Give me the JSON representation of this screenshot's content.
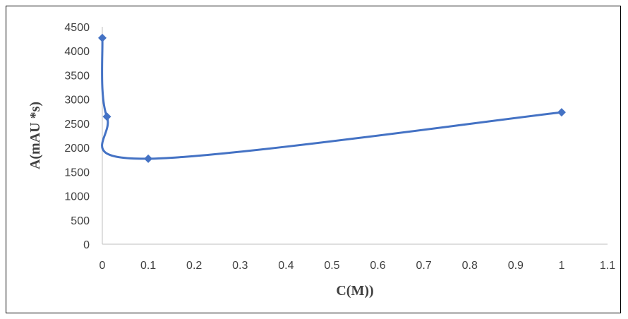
{
  "chart_data": {
    "type": "scatter",
    "title": "",
    "xlabel": "C(M))",
    "ylabel": "A(mAU *s)",
    "xlim": [
      0,
      1.1
    ],
    "ylim": [
      0,
      4500
    ],
    "x_ticks": [
      "0",
      "0.1",
      "0.2",
      "0.3",
      "0.4",
      "0.5",
      "0.6",
      "0.7",
      "0.8",
      "0.9",
      "1",
      "1.1"
    ],
    "y_ticks": [
      "0",
      "500",
      "1000",
      "1500",
      "2000",
      "2500",
      "3000",
      "3500",
      "4000",
      "4500"
    ],
    "grid": false,
    "legend": "none",
    "smooth": true,
    "series": [
      {
        "x": [
          0,
          0.01,
          0.1,
          1
        ],
        "y": [
          4270,
          2640,
          1770,
          2730
        ],
        "color": "#4472C4",
        "marker": "diamond"
      }
    ]
  }
}
